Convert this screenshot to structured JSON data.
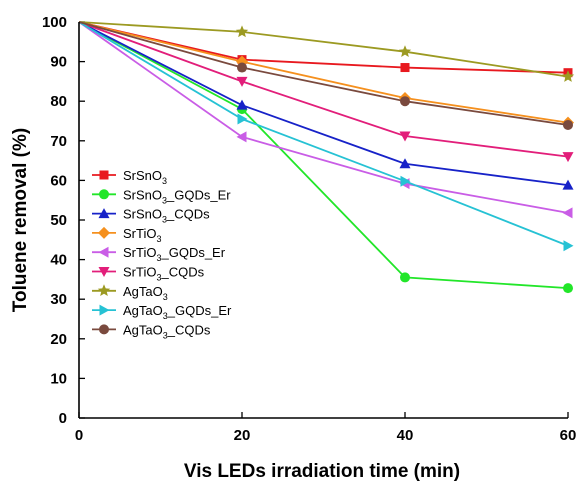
{
  "chart_data": {
    "type": "line",
    "xlabel": "Vis LEDs irradiation time (min)",
    "ylabel": "Toluene removal (%)",
    "xlim": [
      0,
      60
    ],
    "ylim": [
      0,
      100
    ],
    "xticks": [
      "0",
      "20",
      "40",
      "60"
    ],
    "yticks": [
      "0",
      "10",
      "20",
      "30",
      "40",
      "50",
      "60",
      "70",
      "80",
      "90",
      "100"
    ],
    "x": [
      0,
      20,
      40,
      60
    ],
    "grid": false,
    "legend_position": "left",
    "series": [
      {
        "name": "SrSnO3",
        "base": "SrSnO",
        "sub": "3",
        "tail": "",
        "color": "#e8191f",
        "marker": "square",
        "values": [
          100,
          90.5,
          88.5,
          87.2
        ]
      },
      {
        "name": "SrSnO3_GQDs_Er",
        "base": "SrSnO",
        "sub": "3",
        "tail": "_GQDs_Er",
        "color": "#22e629",
        "marker": "circle",
        "values": [
          100,
          78.0,
          35.5,
          32.8
        ]
      },
      {
        "name": "SrSnO3_CQDs",
        "base": "SrSnO",
        "sub": "3",
        "tail": "_CQDs",
        "color": "#1722c8",
        "marker": "triangle-up",
        "values": [
          100,
          79.0,
          64.2,
          58.8
        ]
      },
      {
        "name": "SrTiO3",
        "base": "SrTiO",
        "sub": "3",
        "tail": "",
        "color": "#f5901e",
        "marker": "diamond",
        "values": [
          100,
          90.0,
          80.8,
          74.6
        ]
      },
      {
        "name": "SrTiO3_GQDs_Er",
        "base": "SrTiO",
        "sub": "3",
        "tail": "_GQDs_Er",
        "color": "#c95de6",
        "marker": "triangle-left",
        "values": [
          100,
          71.0,
          59.2,
          51.8
        ]
      },
      {
        "name": "SrTiO3_CQDs",
        "base": "SrTiO",
        "sub": "3",
        "tail": "_CQDs",
        "color": "#e21e7a",
        "marker": "triangle-down",
        "values": [
          100,
          85.0,
          71.2,
          66.0
        ]
      },
      {
        "name": "AgTaO3",
        "base": "AgTaO",
        "sub": "3",
        "tail": "",
        "color": "#9c9a22",
        "marker": "star",
        "values": [
          100,
          97.5,
          92.5,
          86.2
        ]
      },
      {
        "name": "AgTaO3_GQDs_Er",
        "base": "AgTaO",
        "sub": "3",
        "tail": "_GQDs_Er",
        "color": "#26c2d4",
        "marker": "triangle-right",
        "values": [
          100,
          75.5,
          59.8,
          43.5
        ]
      },
      {
        "name": "AgTaO3_CQDs",
        "base": "AgTaO",
        "sub": "3",
        "tail": "_CQDs",
        "color": "#7a4a3e",
        "marker": "circle",
        "values": [
          100,
          88.5,
          80.0,
          74.0
        ]
      }
    ]
  }
}
